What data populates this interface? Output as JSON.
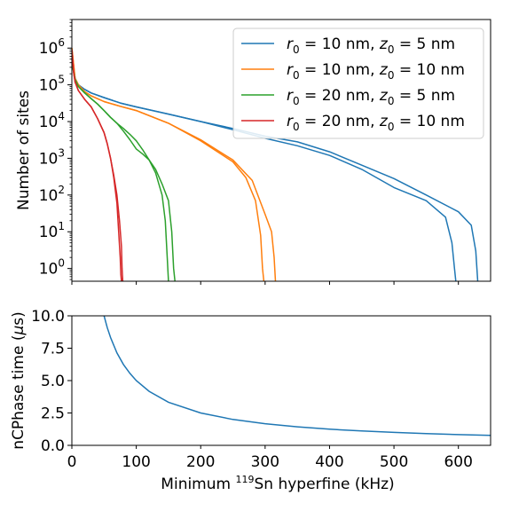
{
  "chart_data": [
    {
      "type": "line",
      "xlabel": "",
      "ylabel": "Number of sites",
      "yscale": "log",
      "xlim": [
        0,
        650
      ],
      "ylim": [
        0.45,
        6000000
      ],
      "grid": false,
      "legend_position": "top-right",
      "x_ticks": [
        0,
        100,
        200,
        300,
        400,
        500,
        600
      ],
      "y_ticks": [
        {
          "value": 1,
          "mantissa": "10",
          "exponent": "0"
        },
        {
          "value": 10,
          "mantissa": "10",
          "exponent": "1"
        },
        {
          "value": 100,
          "mantissa": "10",
          "exponent": "2"
        },
        {
          "value": 1000,
          "mantissa": "10",
          "exponent": "3"
        },
        {
          "value": 10000,
          "mantissa": "10",
          "exponent": "4"
        },
        {
          "value": 100000,
          "mantissa": "10",
          "exponent": "5"
        },
        {
          "value": 1000000,
          "mantissa": "10",
          "exponent": "6"
        }
      ],
      "series": [
        {
          "name": "r0 = 10 nm, z0 = 5 nm",
          "legend": {
            "sym1": "r",
            "sub1": "0",
            "mid": " = 10 nm, ",
            "sym2": "z",
            "sub2": "0",
            "tail": " = 5 nm"
          },
          "color": "#1f77b4",
          "x": [
            0,
            5,
            10,
            20,
            30,
            50,
            75,
            100,
            150,
            200,
            250,
            300,
            350,
            400,
            450,
            500,
            550,
            580,
            590,
            594,
            596
          ],
          "y": [
            600000,
            150000,
            100000,
            75000,
            60000,
            45000,
            32000,
            25000,
            16000,
            10000,
            6000,
            3500,
            2200,
            1200,
            500,
            160,
            70,
            25,
            5,
            1,
            0.45
          ],
          "x2": [
            0,
            5,
            10,
            20,
            30,
            50,
            75,
            100,
            150,
            200,
            250,
            300,
            350,
            400,
            450,
            500,
            550,
            600,
            620,
            627,
            630
          ],
          "y2": [
            600000,
            150000,
            100000,
            75000,
            60000,
            45000,
            32000,
            25000,
            16000,
            10000,
            6500,
            4000,
            2800,
            1500,
            650,
            280,
            100,
            35,
            15,
            3,
            0.45
          ]
        },
        {
          "name": "r0 = 10 nm, z0 = 10 nm",
          "legend": {
            "sym1": "r",
            "sub1": "0",
            "mid": " = 10 nm, ",
            "sym2": "z",
            "sub2": "0",
            "tail": " = 10 nm"
          },
          "color": "#ff7f0e",
          "x": [
            0,
            5,
            10,
            20,
            30,
            50,
            75,
            100,
            150,
            200,
            250,
            270,
            285,
            293,
            296,
            298
          ],
          "y": [
            1000000,
            150000,
            100000,
            65000,
            50000,
            35000,
            26000,
            20000,
            9000,
            3000,
            800,
            300,
            70,
            8,
            1,
            0.45
          ],
          "x2": [
            0,
            5,
            10,
            20,
            30,
            50,
            75,
            100,
            150,
            200,
            250,
            280,
            300,
            310,
            314,
            316
          ],
          "y2": [
            1000000,
            150000,
            100000,
            65000,
            50000,
            35000,
            26000,
            20000,
            9000,
            3200,
            900,
            250,
            30,
            10,
            2,
            0.45
          ]
        },
        {
          "name": "r0 = 20 nm, z0 = 5 nm",
          "legend": {
            "sym1": "r",
            "sub1": "0",
            "mid": " = 20 nm, ",
            "sym2": "z",
            "sub2": "0",
            "tail": " = 5 nm"
          },
          "color": "#2ca02c",
          "x": [
            0,
            5,
            10,
            20,
            30,
            40,
            50,
            60,
            70,
            80,
            90,
            100,
            110,
            120,
            130,
            140,
            145,
            148,
            150
          ],
          "y": [
            400000,
            140000,
            90000,
            60000,
            42000,
            30000,
            20000,
            13000,
            9000,
            6500,
            4500,
            3000,
            1700,
            900,
            400,
            100,
            20,
            2,
            0.45
          ],
          "x2": [
            0,
            5,
            10,
            20,
            30,
            40,
            50,
            60,
            70,
            80,
            90,
            100,
            110,
            120,
            130,
            140,
            150,
            155,
            158,
            160
          ],
          "y2": [
            400000,
            140000,
            90000,
            60000,
            42000,
            30000,
            20000,
            13000,
            9000,
            5500,
            3200,
            1800,
            1300,
            900,
            500,
            200,
            70,
            10,
            1,
            0.45
          ]
        },
        {
          "name": "r0 = 20 nm, z0 = 10 nm",
          "legend": {
            "sym1": "r",
            "sub1": "0",
            "mid": " = 20 nm, ",
            "sym2": "z",
            "sub2": "0",
            "tail": " = 10 nm"
          },
          "color": "#d62728",
          "x": [
            0,
            3,
            5,
            10,
            20,
            30,
            40,
            50,
            55,
            60,
            65,
            70,
            73,
            75,
            76,
            77
          ],
          "y": [
            900000,
            200000,
            120000,
            70000,
            40000,
            25000,
            12000,
            5000,
            2500,
            1000,
            300,
            60,
            8,
            2,
            0.7,
            0.45
          ],
          "x2": [
            0,
            3,
            5,
            10,
            20,
            30,
            40,
            50,
            55,
            60,
            65,
            70,
            74,
            77,
            78,
            79
          ],
          "y2": [
            900000,
            200000,
            120000,
            70000,
            40000,
            25000,
            12000,
            5000,
            2500,
            1000,
            350,
            100,
            20,
            4,
            1,
            0.45
          ]
        }
      ]
    },
    {
      "type": "line",
      "xlabel": {
        "pre": "Minimum ",
        "sup": "119",
        "post": "Sn hyperfine (kHz)"
      },
      "ylabel": {
        "pre": "nCPhase time (",
        "mu": "μ",
        "post": "s)"
      },
      "xlim": [
        0,
        650
      ],
      "ylim": [
        0,
        10
      ],
      "grid": false,
      "x_ticks": [
        0,
        100,
        200,
        300,
        400,
        500,
        600
      ],
      "y_ticks": [
        "0.0",
        "2.5",
        "5.0",
        "7.5",
        "10.0"
      ],
      "series": [
        {
          "color": "#1f77b4",
          "x": [
            50,
            55,
            60,
            70,
            80,
            90,
            100,
            120,
            150,
            200,
            250,
            300,
            350,
            400,
            450,
            500,
            550,
            600,
            650
          ],
          "y": [
            10,
            9.09,
            8.33,
            7.14,
            6.25,
            5.56,
            5.0,
            4.17,
            3.33,
            2.5,
            2.0,
            1.67,
            1.43,
            1.25,
            1.11,
            1.0,
            0.91,
            0.83,
            0.77
          ]
        }
      ]
    }
  ]
}
